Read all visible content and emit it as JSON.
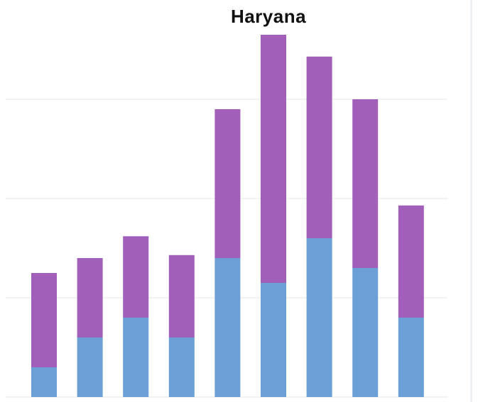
{
  "chart_data": {
    "type": "bar",
    "stacked": true,
    "title": "Haryana",
    "xlabel": "",
    "ylabel": "",
    "categories": [
      "",
      "",
      "",
      "",
      "",
      "",
      "",
      "",
      ""
    ],
    "series": [
      {
        "values": [
          0.3,
          0.6,
          0.8,
          0.6,
          1.4,
          1.15,
          1.6,
          1.3,
          0.8
        ],
        "color": "#6b9fd6"
      },
      {
        "values": [
          0.95,
          0.8,
          0.82,
          0.83,
          1.5,
          2.5,
          1.83,
          1.7,
          1.13
        ],
        "color": "#a25fba"
      }
    ],
    "ylim": [
      0,
      3.6
    ],
    "gridlines": [
      1,
      2,
      3
    ],
    "grid": true,
    "legend": "none",
    "axes_labels_visible": false
  }
}
